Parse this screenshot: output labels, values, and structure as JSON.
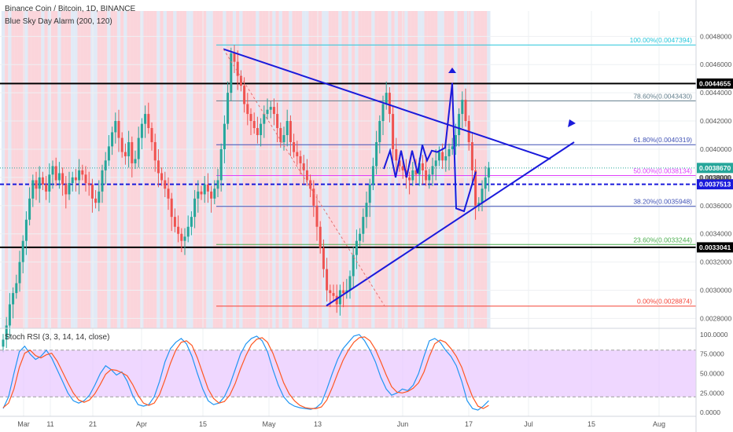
{
  "header": {
    "symbol_title": "Binance Coin / Bitcoin, 1D, BINANCE",
    "indicator_label": "Blue Sky Day Alarm (200, 120)",
    "oscillator_label": "Stoch RSI (3, 3, 14, 14, close)"
  },
  "colors": {
    "up": "#26a69a",
    "down": "#ef5350",
    "bg_band_red": "#f7b3bd",
    "bg_band_blue": "#c9d8ee",
    "osc_band": "#e8c6ff",
    "k_line": "#2196f3",
    "d_line": "#ff5722",
    "drawing": "#1a1adb"
  },
  "chart_data": [
    {
      "type": "candlestick",
      "title": "Binance Coin / Bitcoin, 1D, BINANCE",
      "x_tick_labels": [
        "Mar",
        "11",
        "21",
        "Apr",
        "15",
        "May",
        "13",
        "Jun",
        "17",
        "Jul",
        "15",
        "Aug"
      ],
      "y_tick_labels": [
        "0.0048000",
        "0.0046000",
        "0.0044000",
        "0.0042000",
        "0.0040000",
        "0.0038000",
        "0.0036000",
        "0.0034000",
        "0.0032000",
        "0.0030000",
        "0.0028000"
      ],
      "ylim": [
        0.00273,
        0.00498
      ],
      "close_series": [
        0.00265,
        0.00275,
        0.0029,
        0.00298,
        0.00305,
        0.0032,
        0.00335,
        0.0035,
        0.00365,
        0.00378,
        0.00372,
        0.0038,
        0.00375,
        0.0037,
        0.00382,
        0.00388,
        0.00378,
        0.00383,
        0.00375,
        0.00368,
        0.00376,
        0.0038,
        0.00378,
        0.00385,
        0.00382,
        0.00376,
        0.00375,
        0.00365,
        0.00362,
        0.0037,
        0.00385,
        0.00392,
        0.00402,
        0.00412,
        0.0042,
        0.00408,
        0.00398,
        0.00395,
        0.00405,
        0.0039,
        0.00393,
        0.00408,
        0.00418,
        0.00425,
        0.00415,
        0.00405,
        0.00392,
        0.00383,
        0.00378,
        0.00372,
        0.00365,
        0.00352,
        0.00345,
        0.0034,
        0.00335,
        0.00338,
        0.00345,
        0.00352,
        0.00365,
        0.0037,
        0.00368,
        0.00375,
        0.0037,
        0.00365,
        0.00372,
        0.00378,
        0.004,
        0.00418,
        0.0044,
        0.00468,
        0.00462,
        0.00452,
        0.00445,
        0.00432,
        0.00425,
        0.0042,
        0.00415,
        0.0041,
        0.00418,
        0.00425,
        0.00428,
        0.0043,
        0.00425,
        0.00415,
        0.00405,
        0.0041,
        0.0042,
        0.00405,
        0.00398,
        0.00395,
        0.0039,
        0.00385,
        0.00378,
        0.00372,
        0.0036,
        0.00345,
        0.0033,
        0.00315,
        0.003,
        0.00298,
        0.00296,
        0.0029,
        0.003,
        0.00298,
        0.003,
        0.0031,
        0.00325,
        0.00335,
        0.0034,
        0.00352,
        0.00362,
        0.00375,
        0.00388,
        0.00405,
        0.0042,
        0.00432,
        0.0044,
        0.00425,
        0.004,
        0.00392,
        0.00388,
        0.00385,
        0.0038,
        0.00378,
        0.00385,
        0.00382,
        0.0039,
        0.00385,
        0.00378,
        0.00382,
        0.00388,
        0.00392,
        0.00398,
        0.00392,
        0.00395,
        0.004,
        0.00402,
        0.0041,
        0.00425,
        0.00435,
        0.0042,
        0.00405,
        0.00385,
        0.0036,
        0.00362,
        0.00372,
        0.0038,
        0.00387
      ],
      "volume_note": "",
      "price_labels": [
        "0.0044655",
        "0.0038670",
        "0.0037513",
        "0.0033041",
        "0.0038000"
      ],
      "fib_levels": [
        {
          "label": "100.00%(0.0047394)",
          "value": 0.0047394
        },
        {
          "label": "78.60%(0.0043430)",
          "value": 0.004343
        },
        {
          "label": "61.80%(0.0040319)",
          "value": 0.0040319
        },
        {
          "label": "50.00%(0.0038134)",
          "value": 0.0038134
        },
        {
          "label": "38.20%(0.0035948)",
          "value": 0.0035948
        },
        {
          "label": "23.60%(0.0033244)",
          "value": 0.0033244
        },
        {
          "label": "0.00%(0.0028874)",
          "value": 0.0028874
        }
      ],
      "horizontal_lines": [
        0.0044655,
        0.0033041
      ],
      "dotted_line": 0.0037513,
      "current_price": 0.003867
    },
    {
      "type": "line",
      "title": "Stoch RSI (3, 3, 14, 14, close)",
      "y_tick_labels": [
        "100.0000",
        "75.0000",
        "50.0000",
        "25.0000",
        "0.0000"
      ],
      "ylim": [
        -5,
        108
      ],
      "band": [
        20,
        80
      ],
      "series": [
        {
          "name": "",
          "values": [
            5,
            20,
            50,
            78,
            85,
            75,
            68,
            72,
            80,
            70,
            55,
            40,
            25,
            15,
            12,
            15,
            22,
            35,
            50,
            60,
            55,
            48,
            52,
            40,
            22,
            10,
            8,
            10,
            20,
            40,
            65,
            82,
            90,
            95,
            88,
            72,
            50,
            30,
            15,
            10,
            12,
            20,
            35,
            55,
            75,
            88,
            95,
            98,
            92,
            78,
            55,
            35,
            20,
            12,
            8,
            6,
            5,
            4,
            6,
            12,
            30,
            50,
            68,
            82,
            90,
            98,
            100,
            92,
            80,
            65,
            45,
            30,
            22,
            25,
            30,
            28,
            35,
            50,
            72,
            92,
            95,
            90,
            80,
            72,
            60,
            40,
            15,
            5,
            3,
            8,
            15
          ]
        },
        {
          "name": "",
          "values": [
            6,
            12,
            30,
            58,
            76,
            80,
            73,
            70,
            74,
            76,
            66,
            52,
            38,
            25,
            16,
            13,
            16,
            24,
            36,
            49,
            55,
            54,
            51,
            47,
            36,
            22,
            12,
            9,
            12,
            23,
            42,
            63,
            80,
            90,
            92,
            86,
            70,
            50,
            30,
            18,
            12,
            14,
            22,
            37,
            56,
            73,
            87,
            94,
            96,
            90,
            76,
            57,
            38,
            24,
            15,
            9,
            6,
            5,
            5,
            7,
            16,
            32,
            50,
            67,
            80,
            90,
            96,
            97,
            92,
            81,
            65,
            48,
            33,
            26,
            25,
            27,
            31,
            38,
            52,
            72,
            88,
            93,
            90,
            82,
            72,
            58,
            38,
            20,
            8,
            5,
            9
          ]
        }
      ]
    }
  ]
}
